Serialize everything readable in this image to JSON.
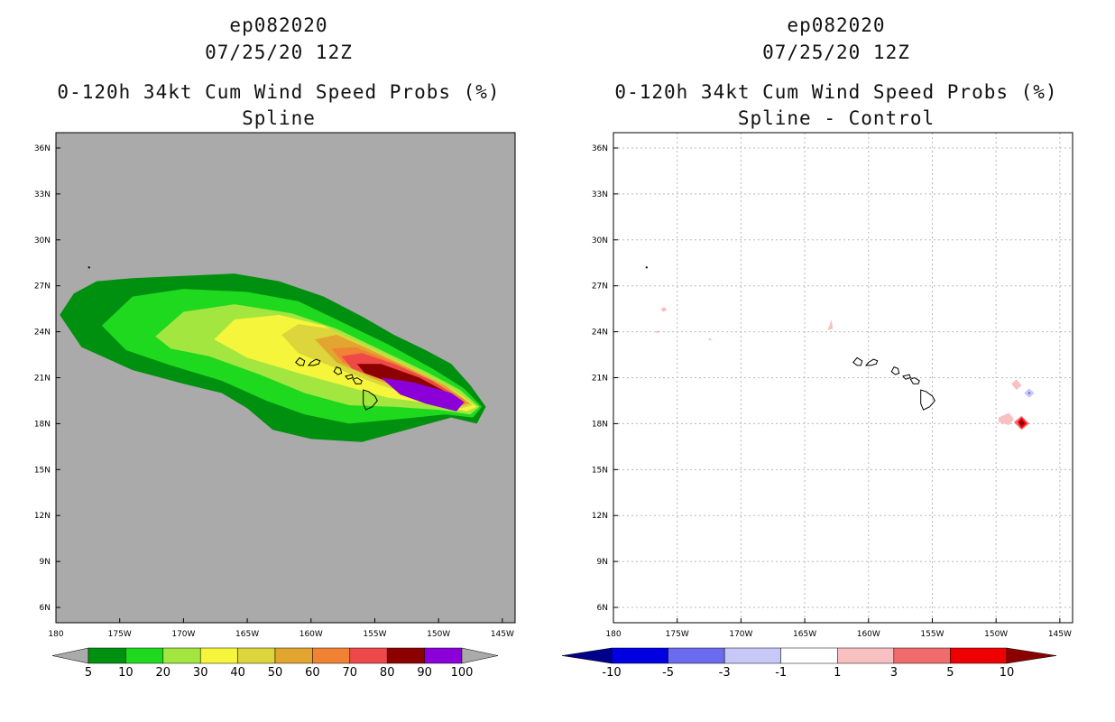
{
  "chart_data": [
    {
      "type": "heatmap",
      "title_lines": [
        "ep082020",
        "07/25/20 12Z",
        "0-120h 34kt Cum Wind Speed Probs (%)",
        "Spline"
      ],
      "x_ticks": [
        "180",
        "175W",
        "170W",
        "165W",
        "160W",
        "155W",
        "150W",
        "145W"
      ],
      "y_ticks": [
        "36N",
        "33N",
        "30N",
        "27N",
        "24N",
        "21N",
        "18N",
        "15N",
        "12N",
        "9N",
        "6N"
      ],
      "xlim": [
        -180,
        -144
      ],
      "ylim": [
        5,
        37
      ],
      "grid": false,
      "background_color": "#aaaaaa",
      "colorbar": {
        "labels": [
          "5",
          "10",
          "20",
          "30",
          "40",
          "50",
          "60",
          "70",
          "80",
          "90",
          "100"
        ],
        "colors": [
          "#00900f",
          "#1fd91f",
          "#a3e640",
          "#f5f53b",
          "#dcd53c",
          "#e2a530",
          "#ef8233",
          "#ef4848",
          "#8c0000",
          "#8b00d9"
        ],
        "low_color": "#aaaaaa",
        "high_color": "#aaaaaa"
      },
      "features": [
        {
          "label": "5",
          "color": "#00900f",
          "points": [
            [
              -179.7,
              25.1
            ],
            [
              -178.6,
              26.5
            ],
            [
              -176.8,
              27.3
            ],
            [
              -174.0,
              27.5
            ],
            [
              -166.0,
              27.8
            ],
            [
              -162.5,
              27.3
            ],
            [
              -159.0,
              26.3
            ],
            [
              -156.0,
              25.0
            ],
            [
              -153.5,
              23.8
            ],
            [
              -151.0,
              22.8
            ],
            [
              -149.0,
              21.9
            ],
            [
              -147.5,
              20.5
            ],
            [
              -146.3,
              19.1
            ],
            [
              -147.0,
              18.0
            ],
            [
              -149.0,
              18.4
            ],
            [
              -152.5,
              17.6
            ],
            [
              -156.0,
              16.8
            ],
            [
              -160.0,
              17.0
            ],
            [
              -163.0,
              17.6
            ],
            [
              -165.0,
              19.0
            ],
            [
              -167.0,
              20.0
            ],
            [
              -170.0,
              20.6
            ],
            [
              -174.0,
              21.5
            ],
            [
              -178.0,
              23.0
            ]
          ]
        },
        {
          "label": "10",
          "color": "#1fd91f",
          "points": [
            [
              -176.4,
              24.4
            ],
            [
              -174.0,
              26.3
            ],
            [
              -170.0,
              26.8
            ],
            [
              -165.0,
              26.6
            ],
            [
              -161.0,
              26.0
            ],
            [
              -157.5,
              24.6
            ],
            [
              -154.0,
              23.2
            ],
            [
              -150.5,
              21.6
            ],
            [
              -148.0,
              20.3
            ],
            [
              -146.6,
              19.1
            ],
            [
              -147.3,
              18.4
            ],
            [
              -149.5,
              18.6
            ],
            [
              -153.0,
              18.3
            ],
            [
              -157.0,
              18.0
            ],
            [
              -160.5,
              18.6
            ],
            [
              -163.5,
              19.5
            ],
            [
              -167.0,
              20.8
            ],
            [
              -171.0,
              21.8
            ],
            [
              -174.5,
              22.8
            ]
          ]
        },
        {
          "label": "20",
          "color": "#a3e640",
          "points": [
            [
              -172.2,
              23.7
            ],
            [
              -170.0,
              25.3
            ],
            [
              -166.0,
              25.8
            ],
            [
              -161.5,
              25.2
            ],
            [
              -158.0,
              24.2
            ],
            [
              -154.5,
              22.8
            ],
            [
              -151.0,
              21.4
            ],
            [
              -148.3,
              20.2
            ],
            [
              -146.8,
              19.1
            ],
            [
              -147.5,
              18.6
            ],
            [
              -150.0,
              18.9
            ],
            [
              -153.5,
              19.1
            ],
            [
              -157.0,
              19.2
            ],
            [
              -160.5,
              20.0
            ],
            [
              -164.0,
              21.2
            ],
            [
              -168.0,
              22.4
            ],
            [
              -171.0,
              22.9
            ]
          ]
        },
        {
          "label": "30",
          "color": "#f5f53b",
          "points": [
            [
              -167.6,
              23.5
            ],
            [
              -166.0,
              24.8
            ],
            [
              -162.5,
              25.1
            ],
            [
              -159.0,
              24.4
            ],
            [
              -155.5,
              23.0
            ],
            [
              -152.0,
              21.6
            ],
            [
              -149.0,
              20.3
            ],
            [
              -147.0,
              19.1
            ],
            [
              -147.8,
              18.8
            ],
            [
              -150.5,
              19.3
            ],
            [
              -154.0,
              19.7
            ],
            [
              -157.5,
              20.5
            ],
            [
              -161.0,
              21.3
            ],
            [
              -165.0,
              22.3
            ]
          ]
        },
        {
          "label": "40",
          "color": "#dcd53c",
          "points": [
            [
              -162.3,
              23.8
            ],
            [
              -161.0,
              24.5
            ],
            [
              -158.5,
              24.2
            ],
            [
              -155.5,
              23.0
            ],
            [
              -152.0,
              21.6
            ],
            [
              -149.2,
              20.4
            ],
            [
              -147.3,
              19.2
            ],
            [
              -148.2,
              19.0
            ],
            [
              -151.0,
              19.6
            ],
            [
              -154.5,
              20.5
            ],
            [
              -158.0,
              21.6
            ],
            [
              -161.0,
              22.6
            ]
          ]
        },
        {
          "label": "50",
          "color": "#e2a530",
          "points": [
            [
              -159.7,
              23.5
            ],
            [
              -158.0,
              23.8
            ],
            [
              -155.8,
              23.0
            ],
            [
              -152.5,
              21.7
            ],
            [
              -149.5,
              20.5
            ],
            [
              -147.5,
              19.3
            ],
            [
              -148.6,
              19.1
            ],
            [
              -151.5,
              19.9
            ],
            [
              -155.0,
              20.9
            ],
            [
              -158.0,
              22.0
            ]
          ]
        },
        {
          "label": "60",
          "color": "#ef8233",
          "points": [
            [
              -158.4,
              22.9
            ],
            [
              -156.5,
              23.0
            ],
            [
              -153.5,
              22.0
            ],
            [
              -150.5,
              20.8
            ],
            [
              -148.0,
              19.6
            ],
            [
              -148.8,
              19.2
            ],
            [
              -151.8,
              20.0
            ],
            [
              -155.0,
              21.1
            ],
            [
              -157.5,
              22.0
            ]
          ]
        },
        {
          "label": "70",
          "color": "#ef4848",
          "points": [
            [
              -157.6,
              22.4
            ],
            [
              -156.0,
              22.6
            ],
            [
              -153.5,
              21.9
            ],
            [
              -150.5,
              20.8
            ],
            [
              -147.9,
              19.4
            ],
            [
              -148.6,
              19.0
            ],
            [
              -151.5,
              19.8
            ],
            [
              -154.5,
              20.9
            ],
            [
              -156.8,
              21.6
            ]
          ]
        },
        {
          "label": "80",
          "color": "#8c0000",
          "points": [
            [
              -156.4,
              21.9
            ],
            [
              -154.5,
              21.9
            ],
            [
              -151.5,
              21.0
            ],
            [
              -148.6,
              19.7
            ],
            [
              -148.2,
              19.3
            ],
            [
              -150.5,
              19.6
            ],
            [
              -153.5,
              20.6
            ],
            [
              -155.8,
              21.3
            ]
          ]
        },
        {
          "label": "90",
          "color": "#8b00d9",
          "points": [
            [
              -154.5,
              21.0
            ],
            [
              -152.0,
              20.7
            ],
            [
              -149.0,
              20.0
            ],
            [
              -148.0,
              19.4
            ],
            [
              -148.6,
              18.8
            ],
            [
              -151.0,
              19.3
            ],
            [
              -153.0,
              19.9
            ]
          ]
        }
      ]
    },
    {
      "type": "heatmap",
      "title_lines": [
        "ep082020",
        "07/25/20 12Z",
        "0-120h 34kt Cum Wind Speed Probs (%)",
        "Spline - Control"
      ],
      "x_ticks": [
        "180",
        "175W",
        "170W",
        "165W",
        "160W",
        "155W",
        "150W",
        "145W"
      ],
      "y_ticks": [
        "36N",
        "33N",
        "30N",
        "27N",
        "24N",
        "21N",
        "18N",
        "15N",
        "12N",
        "9N",
        "6N"
      ],
      "xlim": [
        -180,
        -144
      ],
      "ylim": [
        5,
        37
      ],
      "grid": true,
      "background_color": "#ffffff",
      "colorbar": {
        "labels": [
          "-10",
          "-5",
          "-3",
          "-1",
          "1",
          "3",
          "5",
          "10"
        ],
        "colors": [
          "#0000e0",
          "#6b6bef",
          "#c8c8f8",
          "#ffffff",
          "#f8c0c0",
          "#f06b6b",
          "#ee0000"
        ],
        "low_color": "#00008b",
        "high_color": "#8b0000"
      },
      "features": [
        {
          "label": "1",
          "color": "#f8c0c0",
          "points": [
            [
              -176.3,
              25.5
            ],
            [
              -176.0,
              25.6
            ],
            [
              -175.8,
              25.4
            ],
            [
              -176.1,
              25.3
            ]
          ]
        },
        {
          "label": "1",
          "color": "#f8c0c0",
          "points": [
            [
              -176.8,
              24.0
            ],
            [
              -176.4,
              24.1
            ],
            [
              -176.5,
              23.9
            ]
          ]
        },
        {
          "label": "1",
          "color": "#f8c0c0",
          "points": [
            [
              -172.6,
              23.5
            ],
            [
              -172.4,
              23.6
            ],
            [
              -172.3,
              23.4
            ]
          ]
        },
        {
          "label": "1",
          "color": "#f8c0c0",
          "points": [
            [
              -163.2,
              24.1
            ],
            [
              -162.9,
              24.8
            ],
            [
              -162.8,
              24.2
            ]
          ]
        },
        {
          "label": "1",
          "color": "#f8c0c0",
          "points": [
            [
              -148.8,
              20.6
            ],
            [
              -148.4,
              20.9
            ],
            [
              -148.0,
              20.5
            ],
            [
              -148.4,
              20.2
            ]
          ]
        },
        {
          "label": "1",
          "color": "#f8c0c0",
          "points": [
            [
              -149.8,
              18.4
            ],
            [
              -149.0,
              18.7
            ],
            [
              -148.6,
              18.3
            ],
            [
              -149.0,
              17.9
            ],
            [
              -149.8,
              18.1
            ]
          ]
        },
        {
          "label": "3",
          "color": "#f06b6b",
          "points": [
            [
              -148.6,
              18.1
            ],
            [
              -148.0,
              18.5
            ],
            [
              -147.4,
              18.0
            ],
            [
              -148.0,
              17.6
            ]
          ]
        },
        {
          "label": "5",
          "color": "#ee0000",
          "points": [
            [
              -148.3,
              18.1
            ],
            [
              -148.0,
              18.4
            ],
            [
              -147.6,
              18.0
            ],
            [
              -148.0,
              17.7
            ]
          ]
        },
        {
          "label": "10",
          "color": "#8b0000",
          "points": [
            [
              -148.2,
              18.1
            ],
            [
              -148.0,
              18.25
            ],
            [
              -147.8,
              18.0
            ],
            [
              -148.0,
              17.85
            ]
          ]
        },
        {
          "label": "-1",
          "color": "#c8c8f8",
          "points": [
            [
              -147.8,
              20.0
            ],
            [
              -147.4,
              20.3
            ],
            [
              -147.0,
              20.0
            ],
            [
              -147.4,
              19.7
            ]
          ]
        },
        {
          "label": "-3",
          "color": "#6b6bef",
          "points": [
            [
              -147.5,
              20.0
            ],
            [
              -147.4,
              20.1
            ],
            [
              -147.3,
              20.0
            ],
            [
              -147.4,
              19.9
            ]
          ]
        }
      ]
    }
  ]
}
